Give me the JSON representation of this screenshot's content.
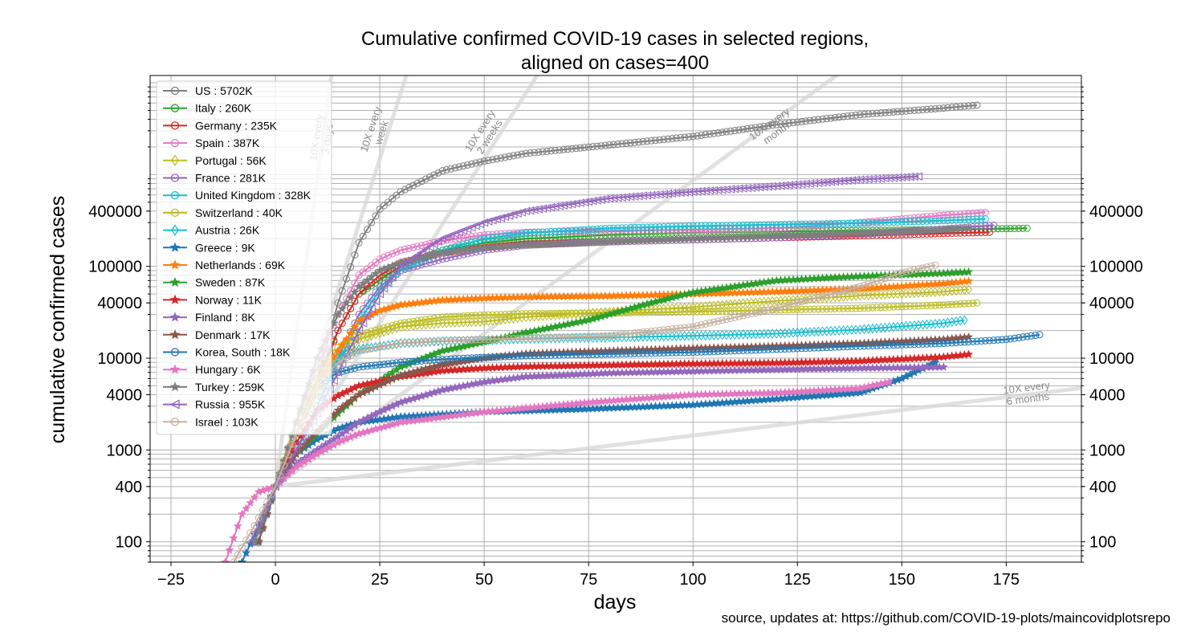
{
  "chart_data": {
    "type": "line",
    "title": "Cumulative confirmed COVID-19 cases in selected regions,",
    "subtitle": "aligned on cases=400",
    "xlabel": "days",
    "ylabel": "cumulative confirmed cases",
    "xlim": [
      -30,
      193
    ],
    "ylim": [
      60,
      12000000
    ],
    "yscale": "log",
    "grid": true,
    "legend_position": "top-left",
    "x_ticks": [
      -25,
      0,
      25,
      50,
      75,
      100,
      125,
      150,
      175
    ],
    "x_tick_labels": [
      "−25",
      "0",
      "25",
      "50",
      "75",
      "100",
      "125",
      "150",
      "175"
    ],
    "y_ticks": [
      100,
      400,
      1000,
      4000,
      10000,
      40000,
      100000,
      400000
    ],
    "y_tick_labels": [
      "100",
      "400",
      "1000",
      "4000",
      "10000",
      "40000",
      "100000",
      "400000"
    ],
    "source_text": "source, updates at: https://github.com/COVID-19-plots/maincovidplotsrepo",
    "reference_lines": [
      {
        "label": "10X every 3 days",
        "days_per_10x": 3
      },
      {
        "label": "10X every week",
        "days_per_10x": 7
      },
      {
        "label": "10X every 2 weeks",
        "days_per_10x": 14
      },
      {
        "label": "10X every month",
        "days_per_10x": 30
      },
      {
        "label": "10X every 6 months",
        "days_per_10x": 180
      }
    ],
    "series": [
      {
        "name": "US : 5702K",
        "color": "#7f7f7f",
        "marker": "circle",
        "x": [
          -5,
          0,
          5,
          10,
          15,
          20,
          25,
          30,
          40,
          50,
          60,
          80,
          100,
          120,
          140,
          160,
          168
        ],
        "y": [
          100,
          400,
          1500,
          6000,
          40000,
          180000,
          420000,
          650000,
          1100000,
          1400000,
          1700000,
          2100000,
          2600000,
          3500000,
          4500000,
          5300000,
          5702000
        ]
      },
      {
        "name": "Italy : 260K",
        "color": "#2ca02c",
        "marker": "circle",
        "x": [
          -4,
          0,
          5,
          10,
          15,
          20,
          30,
          40,
          50,
          60,
          80,
          100,
          120,
          140,
          160,
          180
        ],
        "y": [
          100,
          400,
          1500,
          6000,
          20000,
          50000,
          100000,
          150000,
          180000,
          200000,
          220000,
          233000,
          240000,
          245000,
          252000,
          260000
        ]
      },
      {
        "name": "Germany : 235K",
        "color": "#d62728",
        "marker": "circle",
        "x": [
          -4,
          0,
          5,
          10,
          15,
          20,
          25,
          30,
          40,
          50,
          60,
          80,
          100,
          120,
          140,
          160,
          171
        ],
        "y": [
          100,
          400,
          1500,
          5000,
          20000,
          50000,
          80000,
          110000,
          140000,
          160000,
          175000,
          185000,
          195000,
          205000,
          215000,
          228000,
          235000
        ]
      },
      {
        "name": "Spain : 387K",
        "color": "#e377c2",
        "marker": "circle",
        "x": [
          -4,
          0,
          5,
          10,
          15,
          20,
          25,
          30,
          40,
          50,
          60,
          80,
          100,
          120,
          140,
          160,
          170
        ],
        "y": [
          100,
          400,
          2000,
          8000,
          30000,
          80000,
          120000,
          150000,
          190000,
          220000,
          235000,
          245000,
          250000,
          260000,
          300000,
          360000,
          387000
        ]
      },
      {
        "name": "Portugal : 56K",
        "color": "#bcbd22",
        "marker": "diamond",
        "x": [
          -4,
          0,
          5,
          10,
          15,
          20,
          30,
          40,
          50,
          60,
          80,
          100,
          120,
          140,
          160,
          166
        ],
        "y": [
          100,
          400,
          1500,
          4000,
          10000,
          16000,
          22000,
          24000,
          25000,
          28000,
          32000,
          36000,
          42000,
          48000,
          53000,
          56000
        ]
      },
      {
        "name": "France : 281K",
        "color": "#9467bd",
        "marker": "circle",
        "x": [
          -4,
          0,
          5,
          10,
          15,
          20,
          25,
          30,
          40,
          50,
          60,
          80,
          100,
          120,
          140,
          160,
          172
        ],
        "y": [
          100,
          400,
          1000,
          3000,
          10000,
          30000,
          60000,
          90000,
          120000,
          150000,
          170000,
          185000,
          195000,
          205000,
          225000,
          255000,
          281000
        ]
      },
      {
        "name": "United Kingdom : 328K",
        "color": "#17becf",
        "marker": "circle",
        "x": [
          -4,
          0,
          5,
          10,
          15,
          20,
          25,
          30,
          40,
          50,
          60,
          80,
          100,
          120,
          140,
          160,
          170
        ],
        "y": [
          100,
          400,
          1000,
          3000,
          9000,
          25000,
          55000,
          90000,
          150000,
          200000,
          230000,
          260000,
          275000,
          285000,
          295000,
          315000,
          328000
        ]
      },
      {
        "name": "Switzerland : 40K",
        "color": "#bcbd22",
        "marker": "circle",
        "x": [
          -4,
          0,
          5,
          10,
          15,
          20,
          30,
          40,
          50,
          60,
          80,
          100,
          120,
          140,
          160,
          168
        ],
        "y": [
          100,
          400,
          2000,
          6000,
          13000,
          18000,
          24000,
          28000,
          29500,
          30500,
          31000,
          32000,
          33500,
          35000,
          38000,
          40000
        ]
      },
      {
        "name": "Austria : 26K",
        "color": "#17becf",
        "marker": "diamond",
        "x": [
          -4,
          0,
          5,
          10,
          15,
          20,
          30,
          40,
          50,
          60,
          80,
          100,
          120,
          140,
          160,
          165
        ],
        "y": [
          100,
          400,
          1500,
          5000,
          10000,
          12500,
          14500,
          15300,
          15700,
          16200,
          16800,
          17500,
          18500,
          20500,
          24000,
          26000
        ]
      },
      {
        "name": "Greece : 9K",
        "color": "#1f77b4",
        "marker": "star",
        "x": [
          -8,
          -4,
          0,
          5,
          10,
          15,
          20,
          30,
          50,
          75,
          100,
          120,
          140,
          150,
          158
        ],
        "y": [
          60,
          150,
          400,
          900,
          1300,
          1700,
          2000,
          2300,
          2600,
          2800,
          3100,
          3600,
          4200,
          6000,
          9000
        ]
      },
      {
        "name": "Netherlands : 69K",
        "color": "#ff7f0e",
        "marker": "star",
        "x": [
          -4,
          0,
          5,
          10,
          15,
          20,
          25,
          30,
          40,
          50,
          60,
          80,
          100,
          120,
          140,
          160,
          166
        ],
        "y": [
          100,
          400,
          1500,
          5000,
          12000,
          25000,
          33000,
          38000,
          43000,
          45000,
          46500,
          47500,
          50000,
          53000,
          57000,
          65000,
          69000
        ]
      },
      {
        "name": "Sweden : 87K",
        "color": "#2ca02c",
        "marker": "star",
        "x": [
          -4,
          0,
          5,
          10,
          15,
          20,
          30,
          40,
          50,
          60,
          75,
          90,
          100,
          120,
          140,
          160,
          166
        ],
        "y": [
          100,
          400,
          900,
          1500,
          2500,
          4000,
          8000,
          12000,
          15000,
          19000,
          26000,
          40000,
          52000,
          70000,
          78000,
          84000,
          87000
        ]
      },
      {
        "name": "Norway : 11K",
        "color": "#d62728",
        "marker": "star",
        "x": [
          -4,
          0,
          5,
          10,
          15,
          20,
          30,
          40,
          50,
          60,
          80,
          100,
          120,
          140,
          160,
          166
        ],
        "y": [
          100,
          400,
          1200,
          2700,
          3900,
          5000,
          6300,
          7300,
          7800,
          8100,
          8400,
          8700,
          8900,
          9300,
          10300,
          11000
        ]
      },
      {
        "name": "Finland : 8K",
        "color": "#9467bd",
        "marker": "star",
        "x": [
          -4,
          0,
          5,
          10,
          15,
          20,
          25,
          30,
          40,
          50,
          60,
          80,
          100,
          120,
          140,
          160
        ],
        "y": [
          100,
          400,
          700,
          1000,
          1400,
          2000,
          2600,
          3300,
          4500,
          5500,
          6300,
          6900,
          7200,
          7500,
          7800,
          8000
        ]
      },
      {
        "name": "Denmark : 17K",
        "color": "#8c564b",
        "marker": "star",
        "x": [
          -4,
          0,
          5,
          10,
          15,
          20,
          30,
          40,
          50,
          60,
          80,
          100,
          120,
          140,
          160,
          166
        ],
        "y": [
          100,
          400,
          900,
          1600,
          2700,
          4000,
          6500,
          8500,
          10000,
          11200,
          12000,
          12800,
          13500,
          14500,
          16000,
          17000
        ]
      },
      {
        "name": "Korea, South : 18K",
        "color": "#1f77b4",
        "marker": "circle",
        "x": [
          -5,
          0,
          5,
          10,
          15,
          20,
          30,
          40,
          50,
          60,
          80,
          100,
          120,
          140,
          160,
          175,
          183
        ],
        "y": [
          100,
          400,
          1500,
          5000,
          7000,
          8000,
          9000,
          9700,
          10200,
          10600,
          11100,
          11600,
          12500,
          13500,
          14500,
          16000,
          18000
        ]
      },
      {
        "name": "Hungary : 6K",
        "color": "#e377c2",
        "marker": "star",
        "x": [
          -12,
          -8,
          -4,
          0,
          5,
          10,
          15,
          20,
          30,
          50,
          75,
          100,
          120,
          140,
          147
        ],
        "y": [
          60,
          200,
          350,
          400,
          650,
          900,
          1200,
          1500,
          2000,
          2600,
          3300,
          4000,
          4200,
          4700,
          5500
        ]
      },
      {
        "name": "Turkey : 259K",
        "color": "#7f7f7f",
        "marker": "star",
        "x": [
          -5,
          0,
          5,
          10,
          15,
          20,
          25,
          30,
          40,
          50,
          60,
          80,
          100,
          120,
          140,
          160,
          166
        ],
        "y": [
          100,
          400,
          2000,
          10000,
          30000,
          60000,
          90000,
          110000,
          140000,
          160000,
          170000,
          185000,
          200000,
          215000,
          230000,
          250000,
          259000
        ]
      },
      {
        "name": "Russia : 955K",
        "color": "#9467bd",
        "marker": "triangle-left",
        "x": [
          -6,
          0,
          5,
          10,
          15,
          20,
          25,
          30,
          40,
          50,
          60,
          80,
          100,
          120,
          140,
          154
        ],
        "y": [
          100,
          400,
          1000,
          2500,
          7000,
          20000,
          50000,
          100000,
          200000,
          300000,
          400000,
          550000,
          650000,
          750000,
          880000,
          955000
        ]
      },
      {
        "name": "Israel : 103K",
        "color": "#c5b0a0",
        "marker": "circle",
        "x": [
          -10,
          -5,
          0,
          5,
          10,
          15,
          20,
          30,
          40,
          60,
          80,
          100,
          120,
          140,
          150,
          158
        ],
        "y": [
          60,
          150,
          400,
          1500,
          5000,
          9000,
          12000,
          14500,
          15500,
          16500,
          17500,
          22000,
          35000,
          60000,
          85000,
          103000
        ]
      }
    ]
  }
}
